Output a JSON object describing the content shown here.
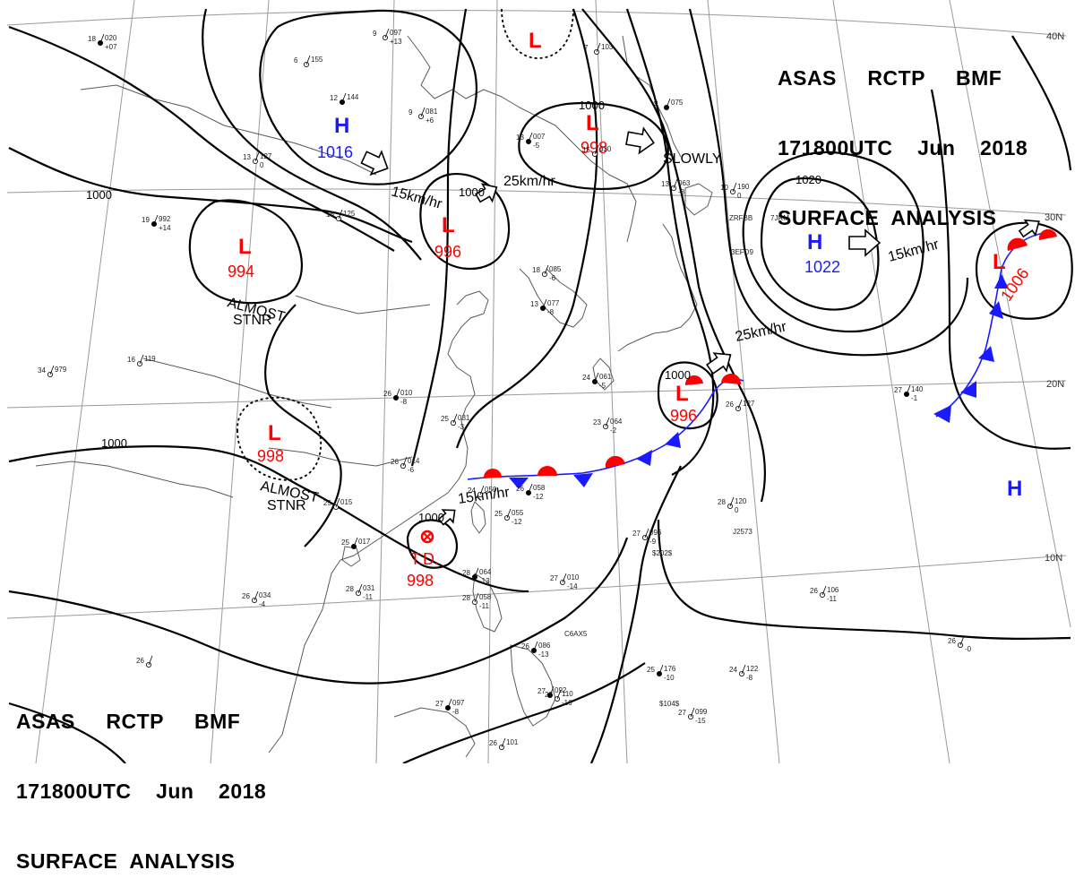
{
  "header": {
    "line1": "ASAS     RCTP     BMF",
    "line2": "171800UTC    Jun    2018",
    "line3": "SURFACE  ANALYSIS"
  },
  "lat_labels": [
    "40N",
    "30N",
    "20N",
    "10N"
  ],
  "isobar_labels": [
    "1000",
    "1000",
    "1000",
    "1000",
    "1000",
    "1000",
    "1020"
  ],
  "systems": [
    {
      "id": "h-1016",
      "symbol": "H",
      "pressure": "1016",
      "color": "#1a1aff"
    },
    {
      "id": "h-1022",
      "symbol": "H",
      "pressure": "1022",
      "color": "#1a1aff"
    },
    {
      "id": "h-east",
      "symbol": "H",
      "pressure": "",
      "color": "#1a1aff"
    },
    {
      "id": "l-994",
      "symbol": "L",
      "pressure": "994",
      "color": "#ff0000"
    },
    {
      "id": "l-996-mongolia",
      "symbol": "L",
      "pressure": "996",
      "color": "#ff0000"
    },
    {
      "id": "l-998-north",
      "symbol": "L",
      "pressure": "998",
      "color": "#ff0000"
    },
    {
      "id": "l-top",
      "symbol": "L",
      "pressure": "",
      "color": "#ff0000"
    },
    {
      "id": "l-998-tibet",
      "symbol": "L",
      "pressure": "998",
      "color": "#ff0000"
    },
    {
      "id": "l-996-japan",
      "symbol": "L",
      "pressure": "996",
      "color": "#ff0000"
    },
    {
      "id": "l-1006",
      "symbol": "L",
      "pressure": "1006",
      "color": "#ff0000"
    },
    {
      "id": "td-998",
      "symbol": "T.D.",
      "pressure": "998",
      "color": "#ff0000"
    }
  ],
  "motions": [
    "15km/hr",
    "25km/hr",
    "15km/hr",
    "25km/hr",
    "15km/hr",
    "SLOWLY"
  ],
  "stationary_notes": [
    "ALMOST",
    "STNR",
    "ALMOST",
    "STNR"
  ],
  "stations": [
    {
      "t": "18",
      "p": "020",
      "d": "+07"
    },
    {
      "t": "9",
      "p": "097",
      "d": "+13"
    },
    {
      "t": "6",
      "p": "155",
      "d": ""
    },
    {
      "t": "12",
      "p": "144",
      "d": ""
    },
    {
      "t": "9",
      "p": "081",
      "d": "+6"
    },
    {
      "t": "7",
      "p": "103",
      "d": ""
    },
    {
      "t": "13",
      "p": "007",
      "d": "-5"
    },
    {
      "t": "13",
      "p": "127",
      "d": "0"
    },
    {
      "t": "15",
      "p": "030",
      "d": ""
    },
    {
      "t": "9",
      "p": "075",
      "d": ""
    },
    {
      "t": "13",
      "p": "063",
      "d": "-8"
    },
    {
      "t": "10",
      "p": "190",
      "d": "0"
    },
    {
      "t": "19",
      "p": "992",
      "d": "+14"
    },
    {
      "t": "16",
      "p": "125",
      "d": ""
    },
    {
      "t": "18",
      "p": "085",
      "d": "-6"
    },
    {
      "t": "13",
      "p": "077",
      "d": "-8"
    },
    {
      "t": "16",
      "p": "119",
      "d": ""
    },
    {
      "t": "34",
      "p": "979",
      "d": ""
    },
    {
      "t": "26",
      "p": "010",
      "d": "-8"
    },
    {
      "t": "25",
      "p": "031",
      "d": "-3"
    },
    {
      "t": "23",
      "p": "064",
      "d": "-2"
    },
    {
      "t": "24",
      "p": "061",
      "d": "-5"
    },
    {
      "t": "26",
      "p": "014",
      "d": "-6"
    },
    {
      "t": "24",
      "p": "050",
      "d": ""
    },
    {
      "t": "26",
      "p": "058",
      "d": "-12"
    },
    {
      "t": "25",
      "p": "055",
      "d": "-12"
    },
    {
      "t": "25",
      "p": "015",
      "d": ""
    },
    {
      "t": "25",
      "p": "017",
      "d": ""
    },
    {
      "t": "28",
      "p": "031",
      "d": "-11"
    },
    {
      "t": "26",
      "p": "034",
      "d": "-4"
    },
    {
      "t": "28",
      "p": "064",
      "d": "-13"
    },
    {
      "t": "27",
      "p": "010",
      "d": "-14"
    },
    {
      "t": "28",
      "p": "058",
      "d": "-11"
    },
    {
      "t": "26",
      "p": "086",
      "d": "-13"
    },
    {
      "t": "27",
      "p": "096",
      "d": "-9"
    },
    {
      "t": "28",
      "p": "120",
      "d": "0"
    },
    {
      "t": "27",
      "p": "140",
      "d": "-1"
    },
    {
      "t": "26",
      "p": "127",
      "d": ""
    },
    {
      "t": "26",
      "p": "106",
      "d": "-11"
    },
    {
      "t": "25",
      "p": "176",
      "d": "-10"
    },
    {
      "t": "24",
      "p": "122",
      "d": "-8"
    },
    {
      "t": "27",
      "p": "099",
      "d": "-15"
    },
    {
      "t": "27",
      "p": "097",
      "d": "-8"
    },
    {
      "t": "26",
      "p": "101",
      "d": ""
    },
    {
      "t": "26",
      "p": "",
      "d": "-0"
    },
    {
      "t": "27",
      "p": "092",
      "d": ""
    },
    {
      "t": "27",
      "p": "110",
      "d": "-16"
    },
    {
      "t": "26",
      "p": "",
      "d": ""
    }
  ],
  "ship_ids": [
    "ZRFBB",
    "3EFD9",
    "7JRM",
    "C6AX5",
    "J2573",
    "$202$",
    "$104$"
  ],
  "colors": {
    "low": "#ff0000",
    "high": "#1a1aff",
    "isobar": "#000000",
    "grid": "#9a9a9a",
    "coast": "#5a5a5a"
  }
}
